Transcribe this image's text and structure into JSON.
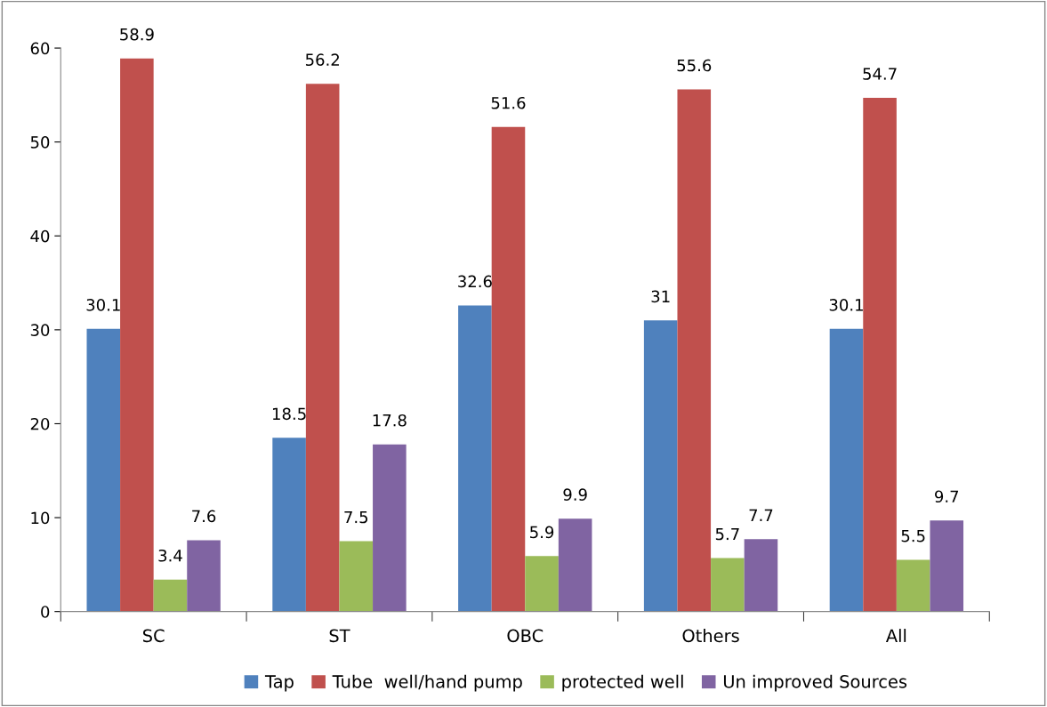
{
  "chart_data": {
    "type": "bar",
    "categories": [
      "SC",
      "ST",
      "OBC",
      "Others",
      "All"
    ],
    "series": [
      {
        "name": "Tap",
        "color": "#4f81bd",
        "values": [
          30.1,
          18.5,
          32.6,
          31,
          30.1
        ]
      },
      {
        "name": "Tube  well/hand pump",
        "color": "#c0504d",
        "values": [
          58.9,
          56.2,
          51.6,
          55.6,
          54.7
        ]
      },
      {
        "name": "protected well",
        "color": "#9bbb59",
        "values": [
          3.4,
          7.5,
          5.9,
          5.7,
          5.5
        ]
      },
      {
        "name": "Un improved Sources",
        "color": "#8064a2",
        "values": [
          7.6,
          17.8,
          9.9,
          7.7,
          9.7
        ]
      }
    ],
    "ylim": [
      0,
      60
    ],
    "yticks": [
      0,
      10,
      20,
      30,
      40,
      50,
      60
    ],
    "data_labels": true,
    "grid": false,
    "legend": "bottom"
  }
}
